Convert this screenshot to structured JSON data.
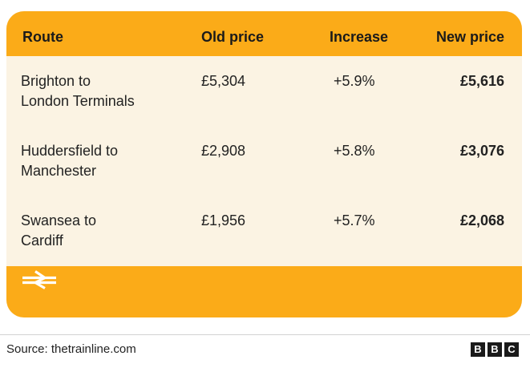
{
  "table": {
    "headers": {
      "route": "Route",
      "old_price": "Old price",
      "increase": "Increase",
      "new_price": "New price"
    },
    "rows": [
      {
        "route_line1": "Brighton to",
        "route_line2": "London Terminals",
        "old_price": "£5,304",
        "increase": "+5.9%",
        "new_price": "£5,616"
      },
      {
        "route_line1": "Huddersfield to",
        "route_line2": "Manchester",
        "old_price": "£2,908",
        "increase": "+5.8%",
        "new_price": "£3,076"
      },
      {
        "route_line1": "Swansea to",
        "route_line2": "Cardiff",
        "old_price": "£1,956",
        "increase": "+5.7%",
        "new_price": "£2,068"
      }
    ]
  },
  "footer": {
    "icon": "national-rail-icon"
  },
  "source": "Source: thetrainline.com",
  "brand": {
    "letters": [
      "B",
      "B",
      "C"
    ]
  },
  "colors": {
    "accent": "#fbab18",
    "panel": "#fbf3e3",
    "text": "#222222"
  }
}
